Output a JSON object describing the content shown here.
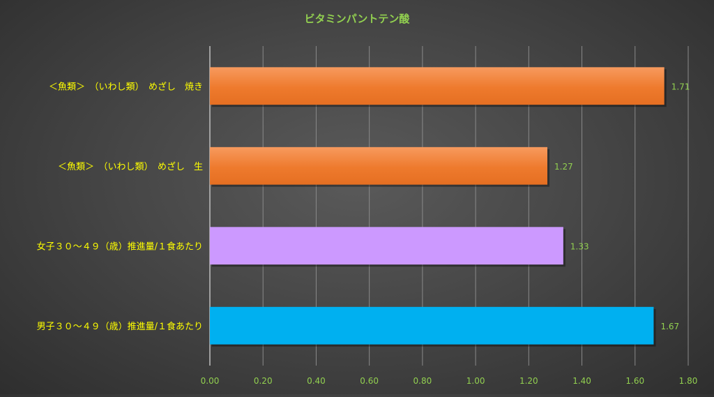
{
  "chart_data": {
    "type": "bar",
    "orientation": "horizontal",
    "title": "ビタミンパントテン酸",
    "xlabel": "",
    "ylabel": "",
    "categories": [
      "＜魚類＞　（いわし類）　めざし　焼き",
      "＜魚類＞　（いわし類）　めざし　生",
      "女子３０～４９（歳）推進量/１食あたり",
      "男子３０～４９（歳）推進量/１食あたり"
    ],
    "values": [
      1.71,
      1.27,
      1.33,
      1.67
    ],
    "value_labels": [
      "1.71",
      "1.27",
      "1.33",
      "1.67"
    ],
    "bar_colors": [
      "#ED7D31",
      "#ED7D31",
      "#CC99FF",
      "#00B0F0"
    ],
    "xlim": [
      0,
      1.8
    ],
    "x_ticks": [
      "0.00",
      "0.20",
      "0.40",
      "0.60",
      "0.80",
      "1.00",
      "1.20",
      "1.40",
      "1.60",
      "1.80"
    ],
    "grid": "vertical",
    "legend": "none",
    "colors": {
      "title": "#92D050",
      "category_labels": "#FFFF00",
      "tick_labels": "#92D050",
      "value_labels": "#92D050",
      "gridlines": "#8A8A8A",
      "axis": "#BFBFBF"
    }
  }
}
